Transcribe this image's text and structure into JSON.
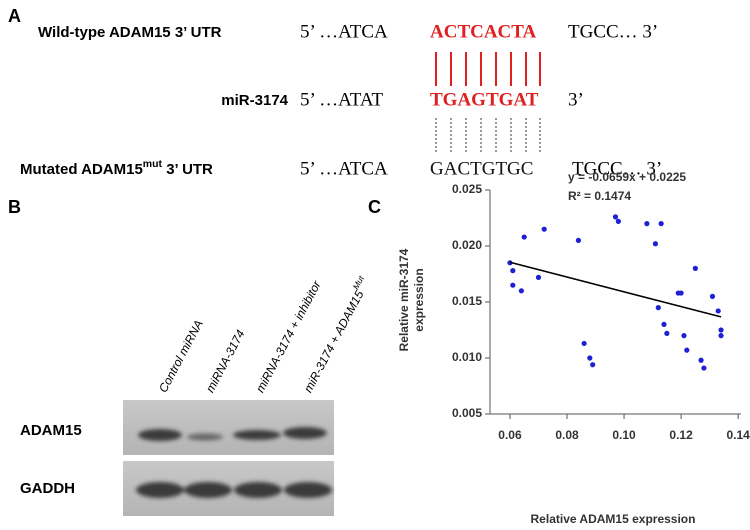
{
  "panel_a": {
    "letter": "A",
    "rows": [
      {
        "label": [
          "Wild-type ADAM15 3’ UTR"
        ],
        "prefix": "5’ …ATCA",
        "seq": "ACTCACTA",
        "suffix": "TGCC… 3’"
      },
      {
        "label": [
          "miR-3174"
        ],
        "prefix": "5’ …ATAT",
        "seq": "TGAGTGAT",
        "suffix": "3’"
      },
      {
        "label": [
          "Mutated ADAM15",
          "mut",
          " 3’ UTR"
        ],
        "prefix": "5’ …ATCA",
        "seq": "GACTGTGC",
        "suffix": "TGCC… 3’"
      }
    ]
  },
  "panel_b": {
    "letter": "B",
    "lanes": [
      [
        "Control miRNA"
      ],
      [
        "miRNA-3174"
      ],
      [
        "miRNA-3174 + inhibitor"
      ],
      [
        "miR-3174 + ADAM15",
        "Mut"
      ]
    ],
    "rows": [
      "ADAM15",
      "GADDH"
    ]
  },
  "panel_c": {
    "letter": "C"
  },
  "chart_data": {
    "type": "scatter",
    "equation": "y = -0.0659x + 0.0225",
    "r_squared": "R² = 0.1474",
    "trendline": {
      "slope": -0.0659,
      "intercept": 0.0225
    },
    "xlabel": "Relative ADAM15 expression",
    "ylabel": [
      "Relative miR-3174",
      "expression"
    ],
    "color": "#1f1fd6",
    "x": [
      0.06,
      0.061,
      0.061,
      0.064,
      0.065,
      0.07,
      0.072,
      0.084,
      0.086,
      0.088,
      0.089,
      0.097,
      0.098,
      0.108,
      0.111,
      0.112,
      0.113,
      0.114,
      0.115,
      0.119,
      0.12,
      0.121,
      0.122,
      0.125,
      0.127,
      0.128,
      0.131,
      0.133,
      0.134,
      0.134
    ],
    "values": [
      0.0185,
      0.0178,
      0.0165,
      0.016,
      0.0208,
      0.0172,
      0.0215,
      0.0205,
      0.0113,
      0.01,
      0.0094,
      0.0226,
      0.0222,
      0.022,
      0.0202,
      0.0145,
      0.022,
      0.013,
      0.0122,
      0.0158,
      0.0158,
      0.012,
      0.0107,
      0.018,
      0.0098,
      0.0091,
      0.0155,
      0.0142,
      0.0125,
      0.012
    ],
    "xlim": [
      0.053,
      0.141
    ],
    "ylim": [
      0.005,
      0.025
    ],
    "xticks": [
      {
        "value": 0.06,
        "label": "0.06"
      },
      {
        "value": 0.08,
        "label": "0.08"
      },
      {
        "value": 0.1,
        "label": "0.10"
      },
      {
        "value": 0.12,
        "label": "0.12"
      },
      {
        "value": 0.14,
        "label": "0.14"
      }
    ],
    "yticks": [
      {
        "value": 0.005,
        "label": "0.005"
      },
      {
        "value": 0.01,
        "label": "0.010"
      },
      {
        "value": 0.015,
        "label": "0.015"
      },
      {
        "value": 0.02,
        "label": "0.020"
      },
      {
        "value": 0.025,
        "label": "0.025"
      }
    ]
  }
}
